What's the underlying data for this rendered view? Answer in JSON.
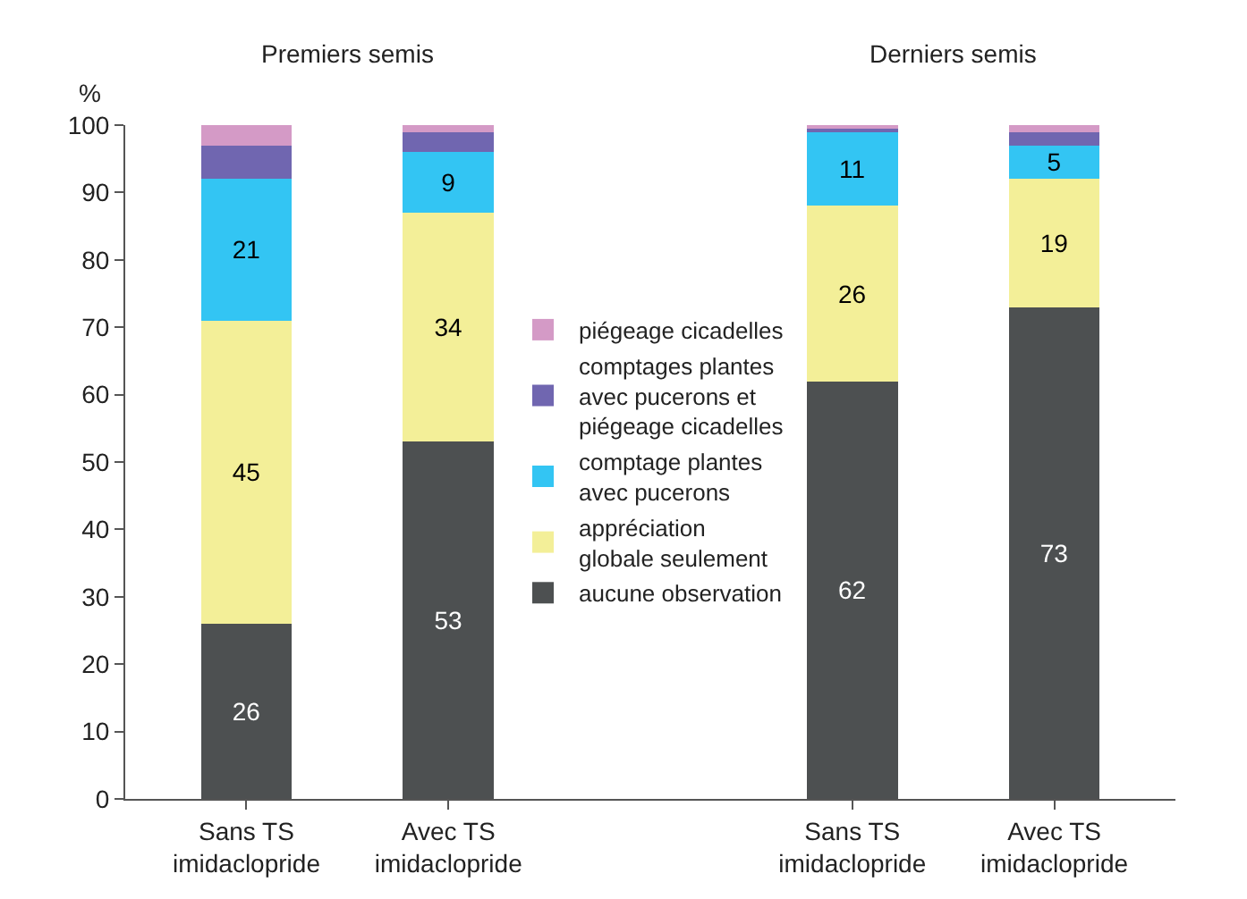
{
  "chart_data": {
    "type": "bar",
    "stacked": true,
    "ylabel": "%",
    "categories": [
      "Sans TS imidaclopride",
      "Avec TS imidaclopride",
      null,
      "Sans TS imidaclopride",
      "Avec TS imidaclopride"
    ],
    "series": [
      {
        "name": "aucune observation",
        "color": "#4d5051",
        "values": [
          26,
          53,
          null,
          62,
          73
        ],
        "value_labels": [
          "26",
          "53",
          null,
          "62",
          "73"
        ]
      },
      {
        "name": "appréciation  globale seulement",
        "color": "#f3ef98",
        "values": [
          45,
          34,
          null,
          26,
          19
        ],
        "value_labels": [
          "45",
          "34",
          null,
          "26",
          "19"
        ]
      },
      {
        "name": "comptage plantes avec pucerons",
        "color": "#33c5f3",
        "values": [
          21,
          9,
          null,
          11,
          5
        ],
        "value_labels": [
          "21",
          "9",
          null,
          "11",
          "5"
        ]
      },
      {
        "name": "comptages plantes avec pucerons et piégeage cicadelles",
        "color": "#7066b0",
        "values": [
          5,
          3,
          null,
          0.7,
          2
        ]
      },
      {
        "name": "piégeage cicadelles",
        "color": "#d49ac6",
        "values": [
          3,
          1,
          null,
          0.3,
          1
        ]
      }
    ],
    "annotations": [
      "Premiers semis",
      "Derniers semis"
    ],
    "ylim": [
      0,
      100
    ],
    "yticks": [
      0,
      10,
      20,
      30,
      40,
      50,
      60,
      70,
      80,
      90,
      100
    ],
    "legend": "center"
  }
}
